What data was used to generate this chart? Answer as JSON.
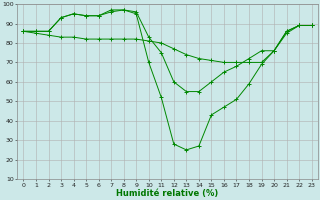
{
  "xlabel": "Humidité relative (%)",
  "background_color": "#cce8e8",
  "grid_color": "#b0b0b0",
  "line_color": "#008800",
  "xlim": [
    -0.5,
    23.5
  ],
  "ylim": [
    10,
    100
  ],
  "yticks": [
    10,
    20,
    30,
    40,
    50,
    60,
    70,
    80,
    90,
    100
  ],
  "xticks": [
    0,
    1,
    2,
    3,
    4,
    5,
    6,
    7,
    8,
    9,
    10,
    11,
    12,
    13,
    14,
    15,
    16,
    17,
    18,
    19,
    20,
    21,
    22,
    23
  ],
  "series": [
    [
      86,
      86,
      86,
      93,
      95,
      94,
      94,
      96,
      97,
      95,
      70,
      52,
      28,
      25,
      27,
      43,
      47,
      51,
      59,
      69,
      76,
      86,
      89,
      89
    ],
    [
      86,
      86,
      86,
      93,
      95,
      94,
      94,
      97,
      97,
      96,
      83,
      75,
      60,
      55,
      55,
      60,
      65,
      68,
      72,
      76,
      76,
      86,
      89,
      89
    ],
    [
      86,
      85,
      84,
      83,
      83,
      82,
      82,
      82,
      82,
      82,
      81,
      80,
      77,
      74,
      72,
      71,
      70,
      70,
      70,
      70,
      76,
      85,
      89,
      89
    ]
  ],
  "xlabel_fontsize": 6,
  "tick_fontsize": 4.5,
  "xlabel_color": "#007700"
}
